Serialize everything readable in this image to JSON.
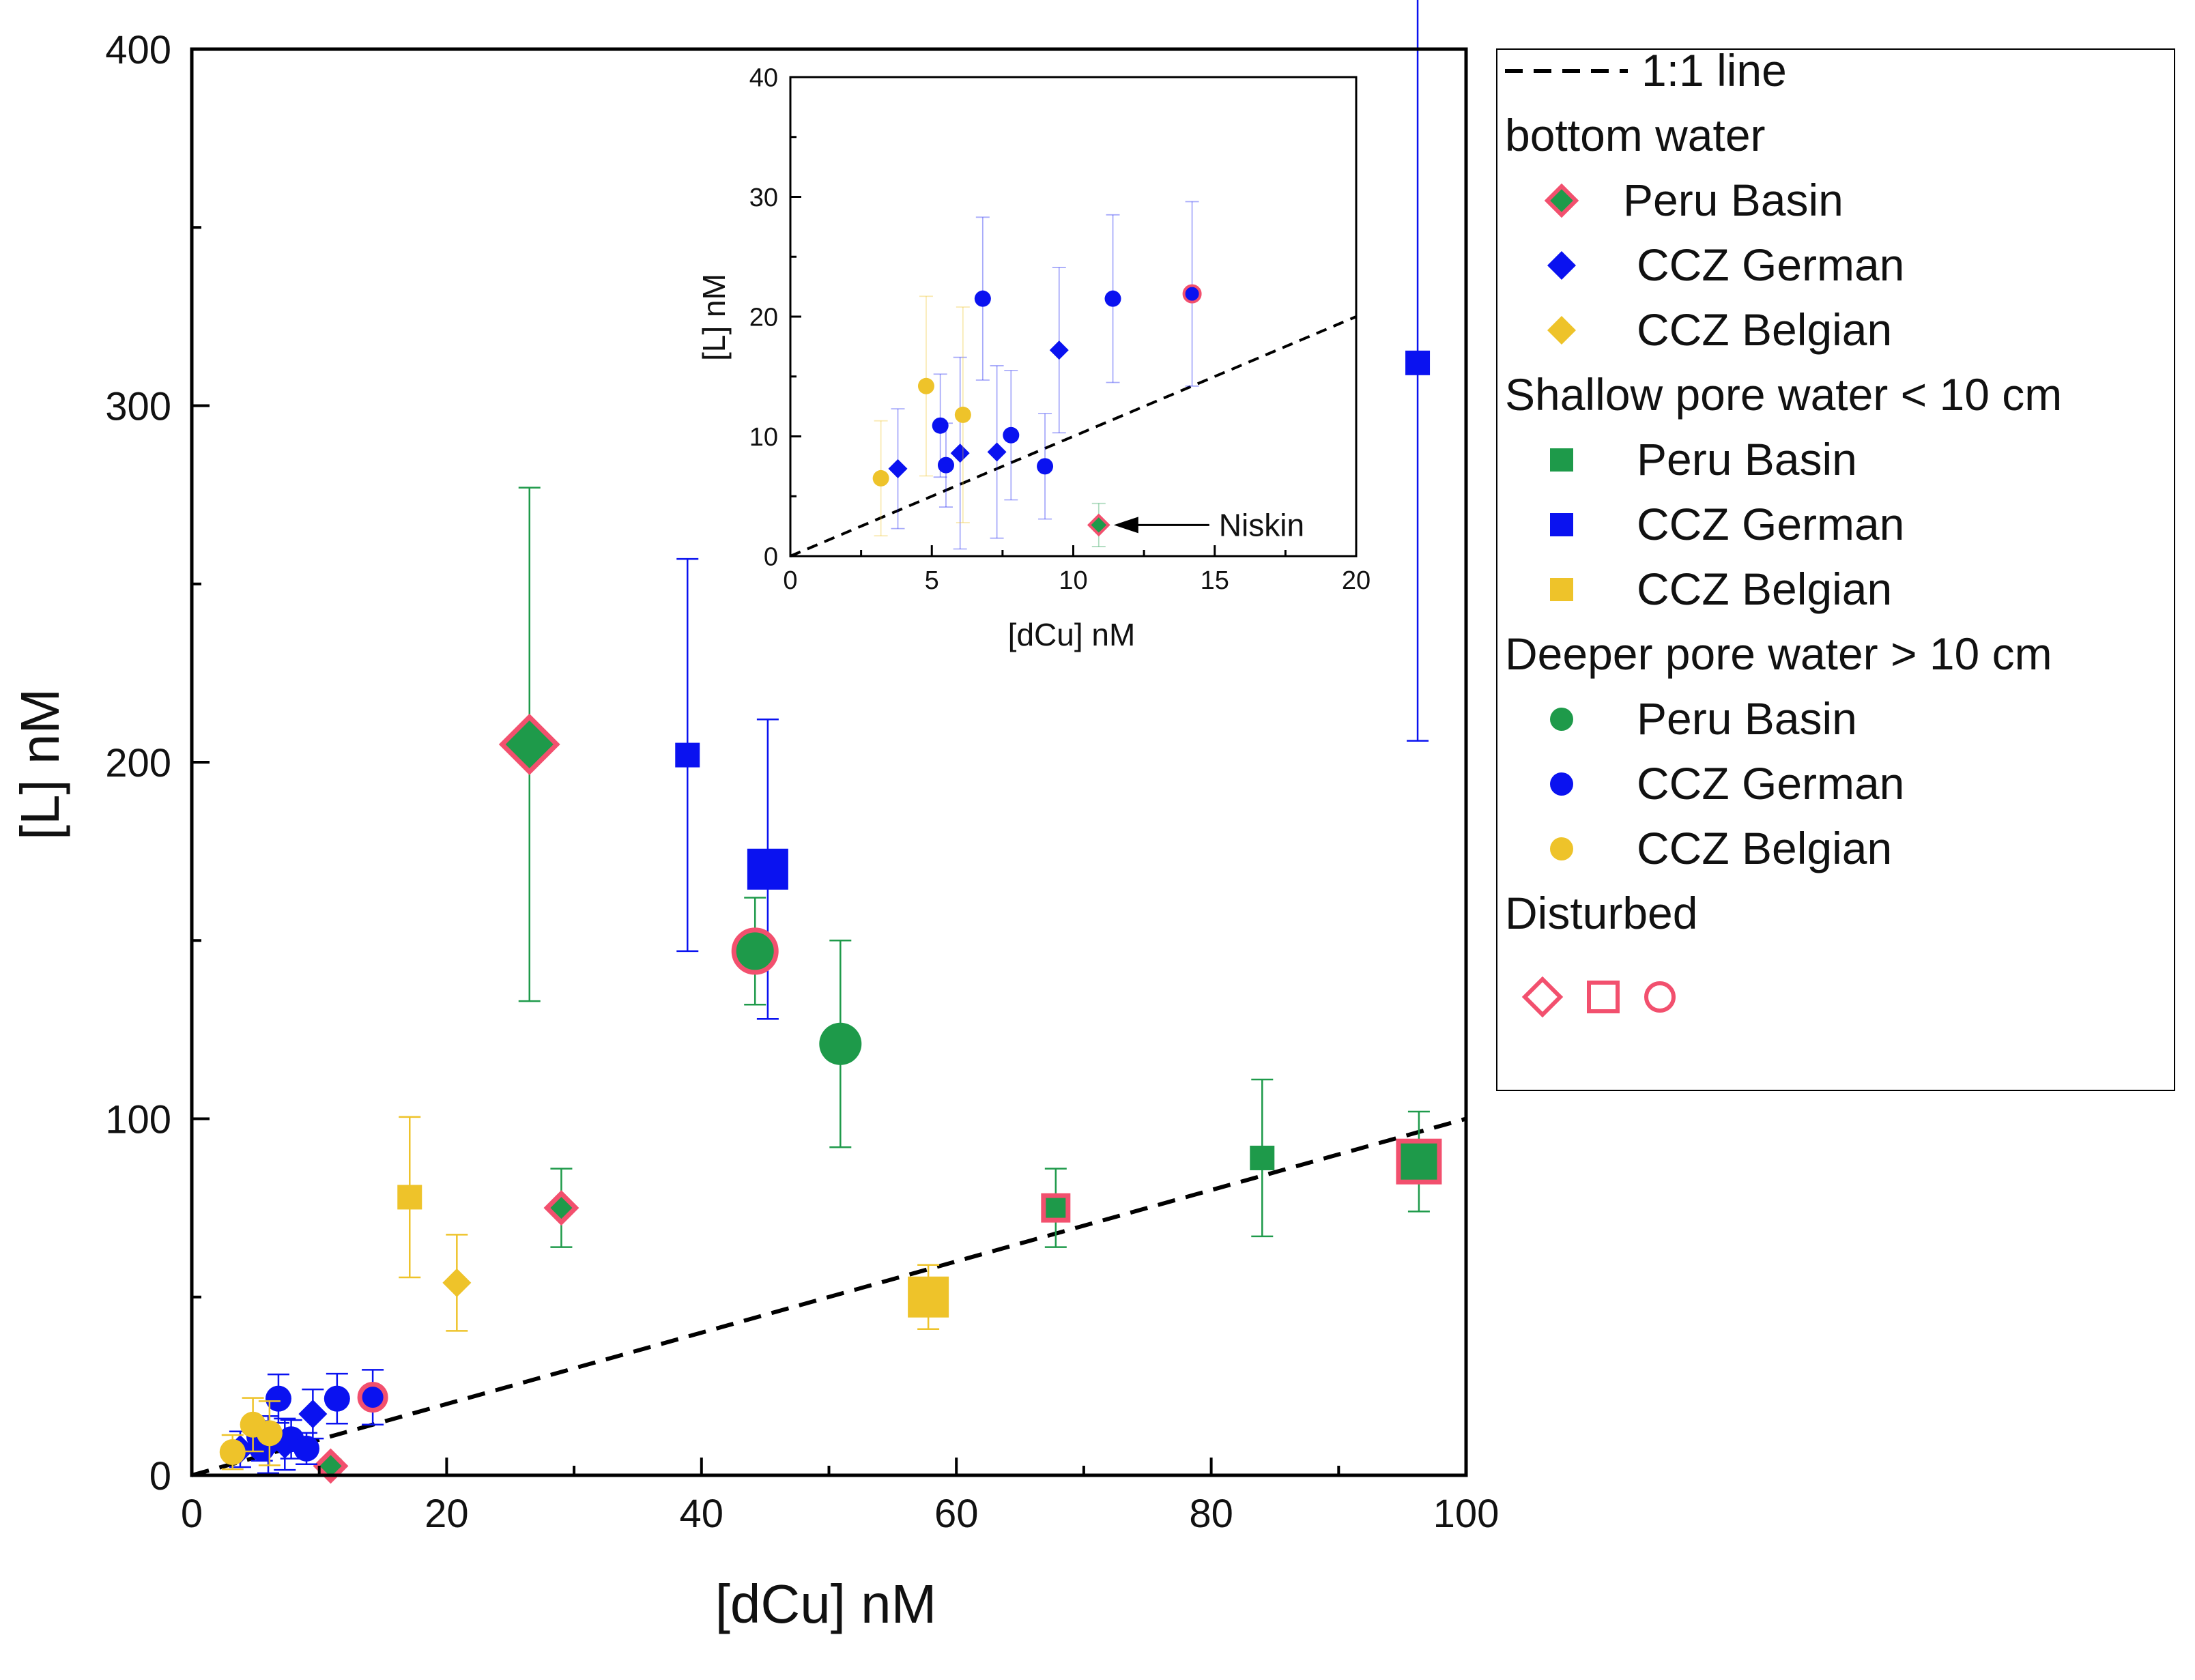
{
  "chart_data": [
    {
      "id": "main",
      "type": "scatter",
      "title": "",
      "xlabel": "[dCu] nM",
      "ylabel": "[L] nM",
      "xlim": [
        0,
        100
      ],
      "ylim": [
        0,
        400
      ],
      "xticks": [
        "0",
        "20",
        "40",
        "60",
        "80",
        "100"
      ],
      "yticks": [
        "0",
        "100",
        "200",
        "300",
        "400"
      ],
      "grid": false,
      "reference_line": {
        "name": "1:1 line",
        "x": [
          0,
          100
        ],
        "y": [
          0,
          100
        ],
        "style": "dashed",
        "color": "#000000"
      },
      "colors": {
        "Peru Basin": "#1e9a4a",
        "CCZ German": "#0a12f0",
        "CCZ Belgian": "#eec32a",
        "disturbed_outline": "#f2506e"
      },
      "points": [
        {
          "x": 26.5,
          "y": 205,
          "err_low": 72,
          "err_high": 72,
          "group": "Peru Basin",
          "shape": "diamond",
          "size": "large",
          "disturbed": true
        },
        {
          "x": 29,
          "y": 75,
          "err_low": 11,
          "err_high": 11,
          "group": "Peru Basin",
          "shape": "diamond",
          "size": "small",
          "disturbed": true
        },
        {
          "x": 10.9,
          "y": 2.6,
          "err_low": 1.8,
          "err_high": 1.8,
          "group": "Peru Basin",
          "shape": "diamond",
          "size": "small",
          "disturbed": true
        },
        {
          "x": 9.5,
          "y": 17.2,
          "err_low": 6.9,
          "err_high": 6.9,
          "group": "CCZ German",
          "shape": "diamond",
          "size": "small",
          "disturbed": false
        },
        {
          "x": 7.3,
          "y": 8.7,
          "err_low": 7.2,
          "err_high": 7.2,
          "group": "CCZ German",
          "shape": "diamond",
          "size": "small",
          "disturbed": false
        },
        {
          "x": 6.0,
          "y": 8.6,
          "err_low": 8.0,
          "err_high": 8.0,
          "group": "CCZ German",
          "shape": "diamond",
          "size": "small",
          "disturbed": false
        },
        {
          "x": 3.8,
          "y": 7.3,
          "err_low": 5.0,
          "err_high": 5.0,
          "group": "CCZ German",
          "shape": "diamond",
          "size": "small",
          "disturbed": false
        },
        {
          "x": 20.8,
          "y": 54,
          "err_low": 13.5,
          "err_high": 13.5,
          "group": "CCZ Belgian",
          "shape": "diamond",
          "size": "small",
          "disturbed": false
        },
        {
          "x": 84,
          "y": 89,
          "err_low": 22,
          "err_high": 22,
          "group": "Peru Basin",
          "shape": "square",
          "size": "small",
          "disturbed": false
        },
        {
          "x": 67.8,
          "y": 75,
          "err_low": 11,
          "err_high": 11,
          "group": "Peru Basin",
          "shape": "square",
          "size": "small",
          "disturbed": true
        },
        {
          "x": 96.3,
          "y": 88,
          "err_low": 14,
          "err_high": 14,
          "group": "Peru Basin",
          "shape": "square",
          "size": "large",
          "disturbed": true
        },
        {
          "x": 38.9,
          "y": 202,
          "err_low": 55,
          "err_high": 55,
          "group": "CCZ German",
          "shape": "square",
          "size": "small",
          "disturbed": false
        },
        {
          "x": 45.2,
          "y": 170,
          "err_low": 42,
          "err_high": 42,
          "group": "CCZ German",
          "shape": "square",
          "size": "large",
          "disturbed": false
        },
        {
          "x": 96.2,
          "y": 312,
          "err_low": 106,
          "err_high": 106,
          "group": "CCZ German",
          "shape": "square",
          "size": "small",
          "disturbed": false
        },
        {
          "x": 17.1,
          "y": 78,
          "err_low": 22.5,
          "err_high": 22.5,
          "group": "CCZ Belgian",
          "shape": "square",
          "size": "small",
          "disturbed": false
        },
        {
          "x": 57.8,
          "y": 50,
          "err_low": 9,
          "err_high": 9,
          "group": "CCZ Belgian",
          "shape": "square",
          "size": "large",
          "disturbed": false
        },
        {
          "x": 44.2,
          "y": 147,
          "err_low": 15,
          "err_high": 15,
          "group": "Peru Basin",
          "shape": "circle",
          "size": "large",
          "disturbed": true
        },
        {
          "x": 50.9,
          "y": 121,
          "err_low": 29,
          "err_high": 29,
          "group": "Peru Basin",
          "shape": "circle",
          "size": "large",
          "disturbed": false
        },
        {
          "x": 14.2,
          "y": 21.9,
          "err_low": 7.7,
          "err_high": 7.7,
          "group": "CCZ German",
          "shape": "circle",
          "size": "small",
          "disturbed": true
        },
        {
          "x": 11.4,
          "y": 21.5,
          "err_low": 7.0,
          "err_high": 7.0,
          "group": "CCZ German",
          "shape": "circle",
          "size": "small",
          "disturbed": false
        },
        {
          "x": 6.8,
          "y": 21.5,
          "err_low": 6.8,
          "err_high": 6.8,
          "group": "CCZ German",
          "shape": "circle",
          "size": "small",
          "disturbed": false
        },
        {
          "x": 5.3,
          "y": 10.9,
          "err_low": 4.3,
          "err_high": 4.3,
          "group": "CCZ German",
          "shape": "circle",
          "size": "small",
          "disturbed": false
        },
        {
          "x": 5.5,
          "y": 7.6,
          "err_low": 3.5,
          "err_high": 3.5,
          "group": "CCZ German",
          "shape": "circle",
          "size": "small",
          "disturbed": false
        },
        {
          "x": 7.8,
          "y": 10.1,
          "err_low": 5.4,
          "err_high": 5.4,
          "group": "CCZ German",
          "shape": "circle",
          "size": "small",
          "disturbed": false
        },
        {
          "x": 9.0,
          "y": 7.5,
          "err_low": 4.4,
          "err_high": 4.4,
          "group": "CCZ German",
          "shape": "circle",
          "size": "small",
          "disturbed": false
        },
        {
          "x": 4.8,
          "y": 14.2,
          "err_low": 7.5,
          "err_high": 7.5,
          "group": "CCZ Belgian",
          "shape": "circle",
          "size": "small",
          "disturbed": false
        },
        {
          "x": 6.1,
          "y": 11.8,
          "err_low": 9.0,
          "err_high": 9.0,
          "group": "CCZ Belgian",
          "shape": "circle",
          "size": "small",
          "disturbed": false
        },
        {
          "x": 3.2,
          "y": 6.5,
          "err_low": 4.8,
          "err_high": 4.8,
          "group": "CCZ Belgian",
          "shape": "circle",
          "size": "small",
          "disturbed": false
        }
      ],
      "legend": {
        "placement": "right",
        "entries": [
          {
            "label": "1:1 line",
            "kind": "line",
            "indent": false
          },
          {
            "label": "bottom water",
            "kind": "header",
            "indent": false
          },
          {
            "label": "Peru Basin",
            "kind": "marker",
            "shape": "diamond",
            "group": "Peru Basin",
            "disturbed": true,
            "indent": true
          },
          {
            "label": "CCZ German",
            "kind": "marker",
            "shape": "diamond",
            "group": "CCZ German",
            "disturbed": false,
            "indent": true
          },
          {
            "label": "CCZ Belgian",
            "kind": "marker",
            "shape": "diamond",
            "group": "CCZ Belgian",
            "disturbed": false,
            "indent": true
          },
          {
            "label": "Shallow pore water < 10 cm",
            "kind": "header",
            "indent": false
          },
          {
            "label": "Peru Basin",
            "kind": "marker",
            "shape": "square",
            "group": "Peru Basin",
            "disturbed": false,
            "indent": true
          },
          {
            "label": "CCZ German",
            "kind": "marker",
            "shape": "square",
            "group": "CCZ German",
            "disturbed": false,
            "indent": true
          },
          {
            "label": "CCZ Belgian",
            "kind": "marker",
            "shape": "square",
            "group": "CCZ Belgian",
            "disturbed": false,
            "indent": true
          },
          {
            "label": "Deeper pore water > 10 cm",
            "kind": "header",
            "indent": false
          },
          {
            "label": "Peru Basin",
            "kind": "marker",
            "shape": "circle",
            "group": "Peru Basin",
            "disturbed": false,
            "indent": true
          },
          {
            "label": "CCZ German",
            "kind": "marker",
            "shape": "circle",
            "group": "CCZ German",
            "disturbed": false,
            "indent": true
          },
          {
            "label": "CCZ Belgian",
            "kind": "marker",
            "shape": "circle",
            "group": "CCZ Belgian",
            "disturbed": false,
            "indent": true
          },
          {
            "label": "Disturbed",
            "kind": "header",
            "indent": false
          },
          {
            "label": "",
            "kind": "disturbed-symbols",
            "indent": false
          }
        ]
      }
    },
    {
      "id": "inset",
      "type": "scatter",
      "title": "",
      "xlabel": "[dCu] nM",
      "ylabel": "[L] nM",
      "xlim": [
        0,
        20
      ],
      "ylim": [
        0,
        40
      ],
      "xticks": [
        "0",
        "5",
        "10",
        "15",
        "20"
      ],
      "yticks": [
        "0",
        "10",
        "20",
        "30",
        "40"
      ],
      "grid": false,
      "reference_line": {
        "name": "1:1 line",
        "x": [
          0,
          20
        ],
        "y": [
          0,
          20
        ],
        "style": "dashed",
        "color": "#000000"
      },
      "annotation": {
        "text": "Niskin",
        "points_to": {
          "x": 10.9,
          "y": 2.6
        }
      },
      "points": [
        {
          "x": 10.9,
          "y": 2.6,
          "err_low": 1.8,
          "err_high": 1.8,
          "group": "Peru Basin",
          "shape": "diamond",
          "size": "small",
          "disturbed": true
        },
        {
          "x": 3.8,
          "y": 7.3,
          "err_low": 5.0,
          "err_high": 5.0,
          "group": "CCZ German",
          "shape": "diamond",
          "size": "small",
          "disturbed": false
        },
        {
          "x": 6.0,
          "y": 8.6,
          "err_low": 8.0,
          "err_high": 8.0,
          "group": "CCZ German",
          "shape": "diamond",
          "size": "small",
          "disturbed": false
        },
        {
          "x": 7.3,
          "y": 8.7,
          "err_low": 7.2,
          "err_high": 7.2,
          "group": "CCZ German",
          "shape": "diamond",
          "size": "small",
          "disturbed": false
        },
        {
          "x": 9.5,
          "y": 17.2,
          "err_low": 6.9,
          "err_high": 6.9,
          "group": "CCZ German",
          "shape": "diamond",
          "size": "small",
          "disturbed": false
        },
        {
          "x": 3.2,
          "y": 6.5,
          "err_low": 4.8,
          "err_high": 4.8,
          "group": "CCZ Belgian",
          "shape": "circle",
          "size": "small",
          "disturbed": false
        },
        {
          "x": 4.8,
          "y": 14.2,
          "err_low": 7.5,
          "err_high": 7.5,
          "group": "CCZ Belgian",
          "shape": "circle",
          "size": "small",
          "disturbed": false
        },
        {
          "x": 6.1,
          "y": 11.8,
          "err_low": 9.0,
          "err_high": 9.0,
          "group": "CCZ Belgian",
          "shape": "circle",
          "size": "small",
          "disturbed": false
        },
        {
          "x": 5.3,
          "y": 10.9,
          "err_low": 4.3,
          "err_high": 4.3,
          "group": "CCZ German",
          "shape": "circle",
          "size": "small",
          "disturbed": false
        },
        {
          "x": 5.5,
          "y": 7.6,
          "err_low": 3.5,
          "err_high": 3.5,
          "group": "CCZ German",
          "shape": "circle",
          "size": "small",
          "disturbed": false
        },
        {
          "x": 6.8,
          "y": 21.5,
          "err_low": 6.8,
          "err_high": 6.8,
          "group": "CCZ German",
          "shape": "circle",
          "size": "small",
          "disturbed": false
        },
        {
          "x": 7.8,
          "y": 10.1,
          "err_low": 5.4,
          "err_high": 5.4,
          "group": "CCZ German",
          "shape": "circle",
          "size": "small",
          "disturbed": false
        },
        {
          "x": 9.0,
          "y": 7.5,
          "err_low": 4.4,
          "err_high": 4.4,
          "group": "CCZ German",
          "shape": "circle",
          "size": "small",
          "disturbed": false
        },
        {
          "x": 11.4,
          "y": 21.5,
          "err_low": 7.0,
          "err_high": 7.0,
          "group": "CCZ German",
          "shape": "circle",
          "size": "small",
          "disturbed": false
        },
        {
          "x": 14.2,
          "y": 21.9,
          "err_low": 7.7,
          "err_high": 7.7,
          "group": "CCZ German",
          "shape": "circle",
          "size": "small",
          "disturbed": true
        }
      ]
    }
  ]
}
